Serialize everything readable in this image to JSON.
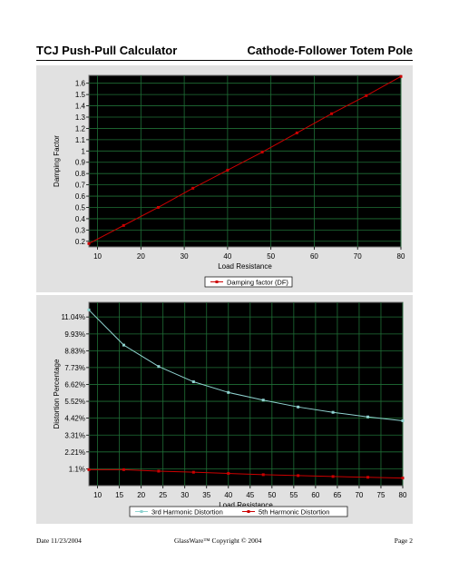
{
  "header": {
    "left_title": "TCJ  Push-Pull Calculator",
    "right_title": "Cathode-Follower Totem Pole"
  },
  "chart_data": [
    {
      "type": "line",
      "title": "",
      "xlabel": "Load Resistance",
      "ylabel": "Damping Factor",
      "xlim": [
        8,
        80
      ],
      "ylim": [
        0.15,
        1.67
      ],
      "x_ticks": [
        10,
        20,
        30,
        40,
        50,
        60,
        70,
        80
      ],
      "y_ticks": [
        0.2,
        0.3,
        0.4,
        0.5,
        0.6,
        0.7,
        0.8,
        0.9,
        1,
        1.1,
        1.2,
        1.3,
        1.4,
        1.5,
        1.6
      ],
      "y_tick_labels": [
        "0.2",
        "0.3",
        "0.4",
        "0.5",
        "0.6",
        "0.7",
        "0.8",
        "0.9",
        "1",
        "1.1",
        "1.2",
        "1.3",
        "1.4",
        "1.5",
        "1.6"
      ],
      "grid": true,
      "legend_position": "bottom-center",
      "series": [
        {
          "name": "Damping factor (DF)",
          "color": "#cc0000",
          "x": [
            8,
            16,
            24,
            32,
            40,
            48,
            56,
            64,
            72,
            80
          ],
          "y": [
            0.18,
            0.34,
            0.5,
            0.67,
            0.83,
            0.99,
            1.16,
            1.33,
            1.49,
            1.66
          ]
        }
      ]
    },
    {
      "type": "line",
      "title": "",
      "xlabel": "Load Resistance",
      "ylabel": "Distortion Percentage",
      "xlim": [
        8,
        80
      ],
      "ylim": [
        0,
        12
      ],
      "x_ticks": [
        10,
        15,
        20,
        25,
        30,
        35,
        40,
        45,
        50,
        55,
        60,
        65,
        70,
        75,
        80
      ],
      "y_ticks": [
        1.1,
        2.21,
        3.31,
        4.42,
        5.52,
        6.62,
        7.73,
        8.83,
        9.93,
        11.04
      ],
      "y_tick_labels": [
        "1.1%",
        "2.21%",
        "3.31%",
        "4.42%",
        "5.52%",
        "6.62%",
        "7.73%",
        "8.83%",
        "9.93%",
        "11.04%"
      ],
      "grid": true,
      "legend_position": "bottom-center",
      "series": [
        {
          "name": "3rd Harmonic Distortion",
          "color": "#8fd3d0",
          "marker": "square",
          "x": [
            8,
            16,
            24,
            32,
            40,
            48,
            56,
            64,
            72,
            80
          ],
          "y": [
            11.5,
            9.2,
            7.8,
            6.8,
            6.1,
            5.6,
            5.15,
            4.8,
            4.5,
            4.25
          ]
        },
        {
          "name": "5th Harmonic Distortion",
          "color": "#cc0000",
          "marker": "square",
          "x": [
            8,
            16,
            24,
            32,
            40,
            48,
            56,
            64,
            72,
            80
          ],
          "y": [
            1.05,
            1.05,
            0.95,
            0.88,
            0.8,
            0.72,
            0.66,
            0.6,
            0.55,
            0.5
          ]
        }
      ]
    }
  ],
  "footer": {
    "date": "Date 11/23/2004",
    "copyright": "GlassWare™ Copyright © 2004",
    "page": "Page 2"
  }
}
